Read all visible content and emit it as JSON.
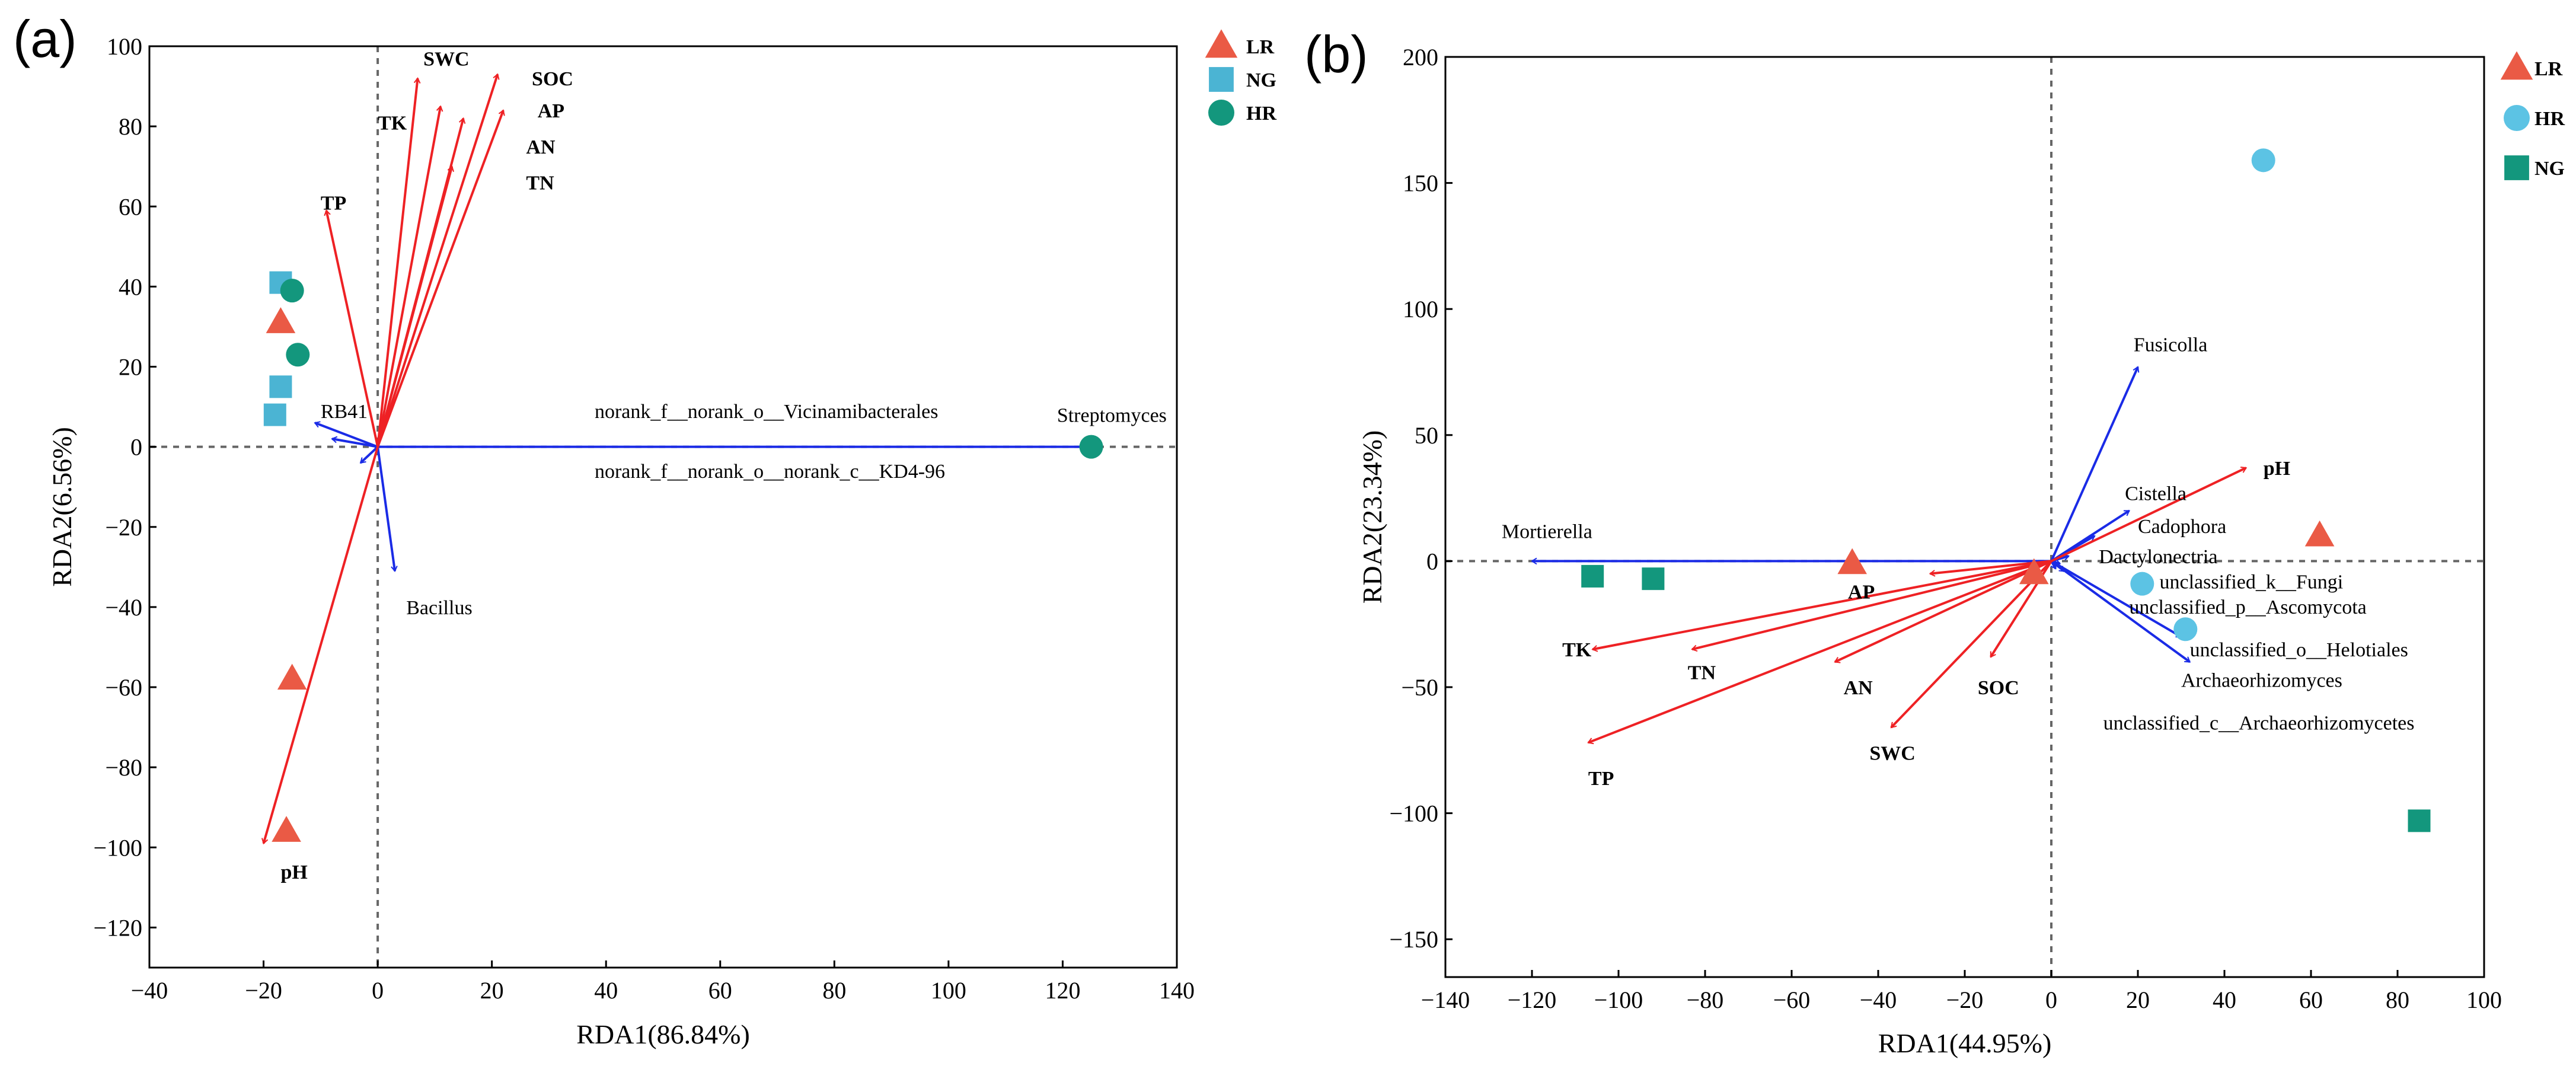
{
  "colors": {
    "env_arrow": "#ee2124",
    "taxa_arrow": "#1a2be6",
    "LR": "#ea5a45",
    "NG_light": "#4bb4d3",
    "HR_dark": "#13977d",
    "HR_light": "#5cc3e4",
    "NG_dark": "#13977d"
  },
  "chart_data": [
    {
      "panel": "(a)",
      "type": "scatter",
      "subtype": "rda-biplot",
      "xlabel": "RDA1(86.84%)",
      "ylabel": "RDA2(6.56%)",
      "xlim": [
        -40,
        140
      ],
      "ylim": [
        -130,
        100
      ],
      "xticks": [
        -40,
        -20,
        0,
        20,
        40,
        60,
        80,
        100,
        120,
        140
      ],
      "yticks": [
        -120,
        -100,
        -80,
        -60,
        -40,
        -20,
        0,
        20,
        40,
        60,
        80,
        100
      ],
      "legend_position": "outside-right",
      "legend": [
        {
          "name": "LR",
          "shape": "triangle",
          "color": "#ea5a45"
        },
        {
          "name": "NG",
          "shape": "square",
          "color": "#4bb4d3"
        },
        {
          "name": "HR",
          "shape": "circle",
          "color": "#13977d"
        }
      ],
      "env_vectors": [
        {
          "label": "SWC",
          "x": 7,
          "y": 92,
          "label_x": 8,
          "label_y": 97
        },
        {
          "label": "SOC",
          "x": 21,
          "y": 93,
          "label_x": 27,
          "label_y": 92
        },
        {
          "label": "TK",
          "x": 11,
          "y": 85,
          "label_x": 0,
          "label_y": 81
        },
        {
          "label": "AP",
          "x": 15,
          "y": 82,
          "label_x": 28,
          "label_y": 84
        },
        {
          "label": "AN",
          "x": 22,
          "y": 84,
          "label_x": 26,
          "label_y": 75
        },
        {
          "label": "TN",
          "x": 13,
          "y": 70,
          "label_x": 26,
          "label_y": 66
        },
        {
          "label": "TP",
          "x": -9,
          "y": 59,
          "label_x": -10,
          "label_y": 61
        },
        {
          "label": "pH",
          "x": -20,
          "y": -99,
          "label_x": -17,
          "label_y": -106
        }
      ],
      "taxa_vectors": [
        {
          "label": "Streptomyces",
          "x": 125,
          "y": 0,
          "label_x": 119,
          "label_y": 8
        },
        {
          "label": "RB41",
          "x": -11,
          "y": 6,
          "label_x": -10,
          "label_y": 9
        },
        {
          "label": "norank_f__norank_o__Vicinamibacterales",
          "x": -8,
          "y": 2,
          "label_x": 38,
          "label_y": 9
        },
        {
          "label": "norank_f__norank_o__norank_c__KD4-96",
          "x": -3,
          "y": -4,
          "label_x": 38,
          "label_y": -6
        },
        {
          "label": "Bacillus",
          "x": 3,
          "y": -31,
          "label_x": 5,
          "label_y": -40
        }
      ],
      "samples": [
        {
          "group": "NG",
          "x": -17,
          "y": 41
        },
        {
          "group": "NG",
          "x": -17,
          "y": 15
        },
        {
          "group": "NG",
          "x": -18,
          "y": 8
        },
        {
          "group": "HR",
          "x": -15,
          "y": 39
        },
        {
          "group": "HR",
          "x": -14,
          "y": 23
        },
        {
          "group": "HR",
          "x": 125,
          "y": 0
        },
        {
          "group": "LR",
          "x": -17,
          "y": 31
        },
        {
          "group": "LR",
          "x": -15,
          "y": -58
        },
        {
          "group": "LR",
          "x": -16,
          "y": -96
        }
      ]
    },
    {
      "panel": "(b)",
      "type": "scatter",
      "subtype": "rda-biplot",
      "xlabel": "RDA1(44.95%)",
      "ylabel": "RDA2(23.34%)",
      "xlim": [
        -140,
        100
      ],
      "ylim": [
        -165,
        200
      ],
      "xticks": [
        -140,
        -120,
        -100,
        -80,
        -60,
        -40,
        -20,
        0,
        20,
        40,
        60,
        80,
        100
      ],
      "yticks": [
        -150,
        -100,
        -50,
        0,
        50,
        100,
        150,
        200
      ],
      "legend_position": "outside-right",
      "legend": [
        {
          "name": "LR",
          "shape": "triangle",
          "color": "#ea5a45"
        },
        {
          "name": "HR",
          "shape": "circle",
          "color": "#5cc3e4"
        },
        {
          "name": "NG",
          "shape": "square",
          "color": "#13977d"
        }
      ],
      "env_vectors": [
        {
          "label": "pH",
          "x": 45,
          "y": 37,
          "label_x": 49,
          "label_y": 37
        },
        {
          "label": "AP",
          "x": -28,
          "y": -5,
          "label_x": -47,
          "label_y": -12
        },
        {
          "label": "TK",
          "x": -106,
          "y": -35,
          "label_x": -113,
          "label_y": -35
        },
        {
          "label": "TN",
          "x": -83,
          "y": -35,
          "label_x": -84,
          "label_y": -44
        },
        {
          "label": "AN",
          "x": -50,
          "y": -40,
          "label_x": -48,
          "label_y": -50
        },
        {
          "label": "SOC",
          "x": -14,
          "y": -38,
          "label_x": -17,
          "label_y": -50
        },
        {
          "label": "SWC",
          "x": -37,
          "y": -66,
          "label_x": -42,
          "label_y": -76
        },
        {
          "label": "TP",
          "x": -107,
          "y": -72,
          "label_x": -107,
          "label_y": -86
        }
      ],
      "taxa_vectors": [
        {
          "label": "Mortierella",
          "x": -120,
          "y": 0,
          "label_x": -127,
          "label_y": 12
        },
        {
          "label": "Fusicolla",
          "x": 20,
          "y": 77,
          "label_x": 19,
          "label_y": 86
        },
        {
          "label": "Cistella",
          "x": 18,
          "y": 20,
          "label_x": 17,
          "label_y": 27
        },
        {
          "label": "Cadophora",
          "x": 10,
          "y": 10,
          "label_x": 20,
          "label_y": 14
        },
        {
          "label": "Dactylonectria",
          "x": 4,
          "y": 2,
          "label_x": 11,
          "label_y": 2
        },
        {
          "label": "unclassified_k__Fungi",
          "x": 2,
          "y": -1,
          "label_x": 25,
          "label_y": -8
        },
        {
          "label": "unclassified_p__Ascomycota",
          "x": 1,
          "y": -3,
          "label_x": 18,
          "label_y": -18
        },
        {
          "label": "unclassified_o__Helotiales",
          "x": 30,
          "y": -30,
          "label_x": 32,
          "label_y": -35
        },
        {
          "label": "Archaeorhizomyces",
          "x": 32,
          "y": -40,
          "label_x": 30,
          "label_y": -47
        },
        {
          "label": "unclassified_c__Archaeorhizomycetes",
          "x": 3,
          "y": -4,
          "label_x": 12,
          "label_y": -64
        }
      ],
      "samples": [
        {
          "group": "LR",
          "x": 62,
          "y": 10
        },
        {
          "group": "LR",
          "x": -46,
          "y": -1
        },
        {
          "group": "LR",
          "x": -4,
          "y": -5
        },
        {
          "group": "HR",
          "x": 49,
          "y": 159
        },
        {
          "group": "HR",
          "x": 21,
          "y": -9
        },
        {
          "group": "HR",
          "x": 31,
          "y": -27
        },
        {
          "group": "NG",
          "x": -106,
          "y": -6
        },
        {
          "group": "NG",
          "x": -92,
          "y": -7
        },
        {
          "group": "NG",
          "x": 85,
          "y": -103
        }
      ]
    }
  ]
}
